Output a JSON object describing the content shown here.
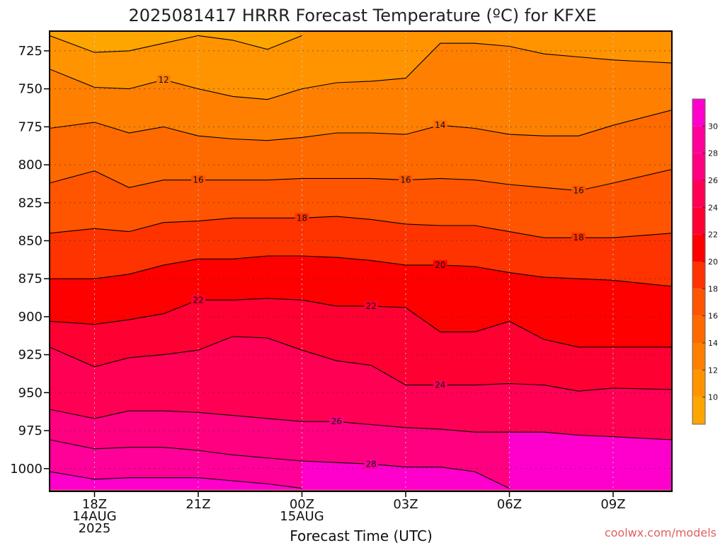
{
  "title": "2025081417 HRRR Forecast Temperature (ºC) for KFXE",
  "credit": "coolwx.com/models",
  "colors": {
    "ground": "#A0522D",
    "contour": "#000000",
    "grid": "#808080"
  },
  "chart_data": {
    "type": "contour",
    "title": "2025081417 HRRR Forecast Temperature (ºC) for KFXE",
    "xlabel": "Forecast Time (UTC)",
    "ylabel": "",
    "y_axis": "pressure (hPa), inverted",
    "ylim": [
      1015,
      712
    ],
    "xlim": [
      -0.3,
      17.7
    ],
    "y_ticks": [
      725,
      750,
      775,
      800,
      825,
      850,
      875,
      900,
      925,
      950,
      975,
      1000
    ],
    "x_ticks": [
      {
        "x": 1,
        "lines": [
          "18Z",
          "14AUG",
          "2025"
        ]
      },
      {
        "x": 4,
        "lines": [
          "21Z"
        ]
      },
      {
        "x": 7,
        "lines": [
          "00Z",
          "15AUG"
        ]
      },
      {
        "x": 10,
        "lines": [
          "03Z"
        ]
      },
      {
        "x": 13,
        "lines": [
          "06Z"
        ]
      },
      {
        "x": 16,
        "lines": [
          "09Z"
        ]
      }
    ],
    "grid": true,
    "surface_pressure": 1014,
    "colorbar": {
      "position": "right",
      "levels": [
        8,
        10,
        12,
        14,
        16,
        18,
        20,
        22,
        24,
        26,
        28,
        30,
        32
      ],
      "colors": [
        "#FFA500",
        "#FF9400",
        "#FF8000",
        "#FF6A00",
        "#FF5500",
        "#FF3300",
        "#FF0000",
        "#FF0033",
        "#FF0055",
        "#FF0080",
        "#FF0099",
        "#FF00CC"
      ],
      "tick_labels": [
        10,
        12,
        14,
        16,
        18,
        20,
        22,
        24,
        26,
        28,
        30
      ]
    },
    "x": [
      -0.3,
      1,
      2,
      3,
      4,
      5,
      6,
      7,
      8,
      9,
      10,
      11,
      12,
      13,
      14,
      15,
      16,
      17.7
    ],
    "contours": [
      {
        "level": 10,
        "label_at": [],
        "p": [
          715,
          726,
          725,
          720,
          715,
          718,
          724,
          715,
          null,
          null,
          null,
          null,
          null,
          null,
          null,
          null,
          null,
          null
        ]
      },
      {
        "level": 12,
        "label_at": [
          3
        ],
        "p": [
          737,
          749,
          750,
          744,
          750,
          755,
          757,
          750,
          746,
          745,
          743,
          720,
          720,
          722,
          727,
          729,
          731,
          733
        ]
      },
      {
        "level": 14,
        "label_at": [
          11
        ],
        "p": [
          776,
          772,
          779,
          775,
          781,
          783,
          784,
          782,
          779,
          779,
          780,
          774,
          776,
          780,
          781,
          781,
          774,
          764
        ]
      },
      {
        "level": 16,
        "label_at": [
          4,
          10,
          15
        ],
        "p": [
          812,
          804,
          815,
          810,
          810,
          810,
          810,
          809,
          809,
          809,
          810,
          809,
          810,
          813,
          815,
          817,
          812,
          803
        ]
      },
      {
        "level": 18,
        "label_at": [
          7,
          15
        ],
        "p": [
          845,
          842,
          844,
          838,
          837,
          835,
          835,
          835,
          834,
          836,
          839,
          840,
          840,
          844,
          848,
          848,
          848,
          845
        ]
      },
      {
        "level": 20,
        "label_at": [
          11
        ],
        "p": [
          875,
          875,
          872,
          866,
          862,
          862,
          860,
          860,
          861,
          863,
          866,
          866,
          867,
          871,
          874,
          875,
          876,
          880
        ]
      },
      {
        "level": 22,
        "label_at": [
          4,
          9
        ],
        "p": [
          903,
          905,
          902,
          898,
          889,
          889,
          888,
          889,
          893,
          893,
          894,
          910,
          910,
          903,
          915,
          920,
          920,
          920
        ]
      },
      {
        "level": 24,
        "label_at": [
          11
        ],
        "p": [
          920,
          933,
          927,
          925,
          922,
          913,
          914,
          922,
          929,
          932,
          945,
          945,
          945,
          944,
          945,
          949,
          947,
          948
        ]
      },
      {
        "level": 26,
        "label_at": [
          8
        ],
        "p": [
          961,
          967,
          962,
          962,
          963,
          965,
          967,
          969,
          969,
          971,
          973,
          974,
          976,
          976,
          976,
          978,
          979,
          981
        ]
      },
      {
        "level": 28,
        "label_at": [
          9
        ],
        "p": [
          981,
          987,
          986,
          986,
          988,
          991,
          993,
          995,
          996,
          997,
          999,
          999,
          1002,
          1013,
          null,
          null,
          null,
          null
        ]
      },
      {
        "level": 30,
        "label_at": [],
        "p": [
          1002,
          1007,
          1006,
          1006,
          1006,
          1008,
          1010,
          1013,
          null,
          null,
          null,
          null,
          null,
          null,
          null,
          null,
          null,
          null
        ]
      }
    ]
  }
}
